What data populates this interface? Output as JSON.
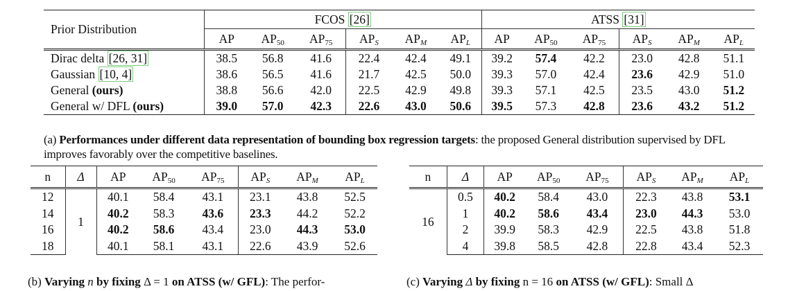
{
  "table_a": {
    "row_header": "Prior Distribution",
    "groups": [
      {
        "name": "FCOS",
        "cite": "[26]"
      },
      {
        "name": "ATSS",
        "cite": "[31]"
      }
    ],
    "columns": [
      {
        "base": "AP",
        "sub": ""
      },
      {
        "base": "AP",
        "sub": "50"
      },
      {
        "base": "AP",
        "sub": "75"
      },
      {
        "base": "AP",
        "sub": "S"
      },
      {
        "base": "AP",
        "sub": "M"
      },
      {
        "base": "AP",
        "sub": "L"
      }
    ],
    "rows": [
      {
        "label": "Dirac delta ",
        "cite": "[26, 31]",
        "ours": "",
        "fcos": [
          "38.5",
          "56.8",
          "41.6",
          "22.4",
          "42.4",
          "49.1"
        ],
        "atss": [
          "39.2",
          "57.4",
          "42.2",
          "23.0",
          "42.8",
          "51.1"
        ],
        "fcos_bold": [
          0,
          0,
          0,
          0,
          0,
          0
        ],
        "atss_bold": [
          0,
          1,
          0,
          0,
          0,
          0
        ]
      },
      {
        "label": "Gaussian ",
        "cite": "[10, 4]",
        "ours": "",
        "fcos": [
          "38.6",
          "56.5",
          "41.6",
          "21.7",
          "42.5",
          "50.0"
        ],
        "atss": [
          "39.3",
          "57.0",
          "42.4",
          "23.6",
          "42.9",
          "51.0"
        ],
        "fcos_bold": [
          0,
          0,
          0,
          0,
          0,
          0
        ],
        "atss_bold": [
          0,
          0,
          0,
          1,
          0,
          0
        ]
      },
      {
        "label": "General ",
        "cite": "",
        "ours": "(ours)",
        "fcos": [
          "38.8",
          "56.6",
          "42.0",
          "22.5",
          "42.9",
          "49.8"
        ],
        "atss": [
          "39.3",
          "57.1",
          "42.5",
          "23.5",
          "43.0",
          "51.2"
        ],
        "fcos_bold": [
          0,
          0,
          0,
          0,
          0,
          0
        ],
        "atss_bold": [
          0,
          0,
          0,
          0,
          0,
          1
        ]
      },
      {
        "label": "General w/ DFL ",
        "cite": "",
        "ours": "(ours)",
        "fcos": [
          "39.0",
          "57.0",
          "42.3",
          "22.6",
          "43.0",
          "50.6"
        ],
        "atss": [
          "39.5",
          "57.3",
          "42.8",
          "23.6",
          "43.2",
          "51.2"
        ],
        "fcos_bold": [
          1,
          1,
          1,
          1,
          1,
          1
        ],
        "atss_bold": [
          1,
          0,
          1,
          1,
          1,
          1
        ]
      }
    ],
    "caption": {
      "prefix": "(a) ",
      "bold": "Performances under different data representation of bounding box regression targets",
      "rest": ": the proposed General distribution supervised by DFL improves favorably over the competitive baselines."
    }
  },
  "table_b": {
    "headers": [
      "n",
      "Δ"
    ],
    "delta_value": "1",
    "rows": [
      {
        "n": "12",
        "vals": [
          "40.1",
          "58.4",
          "43.1",
          "23.1",
          "43.8",
          "52.5"
        ],
        "bold": [
          0,
          0,
          0,
          0,
          0,
          0
        ]
      },
      {
        "n": "14",
        "vals": [
          "40.2",
          "58.3",
          "43.6",
          "23.3",
          "44.2",
          "52.2"
        ],
        "bold": [
          1,
          0,
          1,
          1,
          0,
          0
        ]
      },
      {
        "n": "16",
        "vals": [
          "40.2",
          "58.6",
          "43.4",
          "23.0",
          "44.3",
          "53.0"
        ],
        "bold": [
          1,
          1,
          0,
          0,
          1,
          1
        ]
      },
      {
        "n": "18",
        "vals": [
          "40.1",
          "58.1",
          "43.1",
          "22.6",
          "43.9",
          "52.6"
        ],
        "bold": [
          0,
          0,
          0,
          0,
          0,
          0
        ]
      }
    ],
    "caption": {
      "prefix": "(b) ",
      "bold1": "Varying ",
      "var": "n",
      "bold2": " by fixing ",
      "eq": "Δ = 1",
      "bold3": " on ATSS (w/ GFL)",
      "rest": ": The perfor-"
    }
  },
  "table_c": {
    "headers": [
      "n",
      "Δ"
    ],
    "n_value": "16",
    "rows": [
      {
        "d": "0.5",
        "vals": [
          "40.2",
          "58.4",
          "43.0",
          "22.3",
          "43.8",
          "53.1"
        ],
        "bold": [
          1,
          0,
          0,
          0,
          0,
          1
        ]
      },
      {
        "d": "1",
        "vals": [
          "40.2",
          "58.6",
          "43.4",
          "23.0",
          "44.3",
          "53.0"
        ],
        "bold": [
          1,
          1,
          1,
          1,
          1,
          0
        ]
      },
      {
        "d": "2",
        "vals": [
          "39.9",
          "58.3",
          "42.9",
          "22.5",
          "43.8",
          "51.8"
        ],
        "bold": [
          0,
          0,
          0,
          0,
          0,
          0
        ]
      },
      {
        "d": "4",
        "vals": [
          "39.8",
          "58.5",
          "42.8",
          "22.8",
          "43.4",
          "52.3"
        ],
        "bold": [
          0,
          0,
          0,
          0,
          0,
          0
        ]
      }
    ],
    "caption": {
      "prefix": "(c) ",
      "bold1": "Varying ",
      "var": "Δ",
      "bold2": " by fixing ",
      "eq": "n = 16",
      "bold3": " on ATSS (w/ GFL)",
      "rest": ": Small Δ"
    }
  }
}
